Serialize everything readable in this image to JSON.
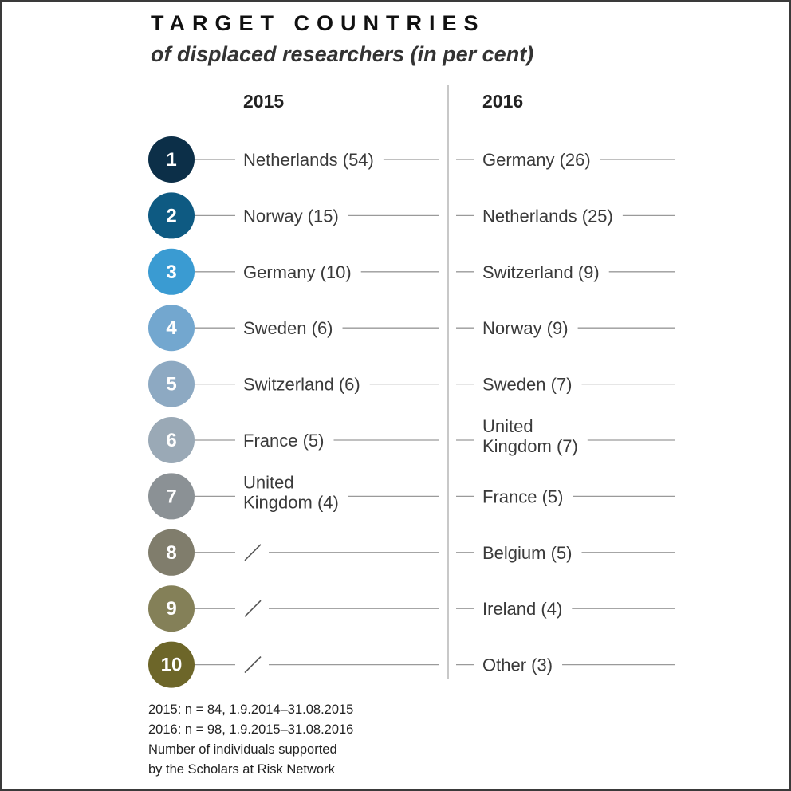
{
  "chart_data": {
    "type": "table",
    "title": "TARGET COUNTRIES",
    "subtitle": "of displaced researchers (in per cent)",
    "columns": [
      "2015",
      "2016"
    ],
    "ranks": [
      "1",
      "2",
      "3",
      "4",
      "5",
      "6",
      "7",
      "8",
      "9",
      "10"
    ],
    "rank_colors": [
      "#0c2f48",
      "#0e5a82",
      "#3a9bd2",
      "#73a7cf",
      "#8da9c2",
      "#9aa9b6",
      "#8b9195",
      "#807d6c",
      "#848058",
      "#6d6629"
    ],
    "series": [
      {
        "name": "2015",
        "entries": [
          {
            "country": "Netherlands",
            "value": 54
          },
          {
            "country": "Norway",
            "value": 15
          },
          {
            "country": "Germany",
            "value": 10
          },
          {
            "country": "Sweden",
            "value": 6
          },
          {
            "country": "Switzerland",
            "value": 6
          },
          {
            "country": "France",
            "value": 5
          },
          {
            "country": "United Kingdom",
            "value": 4
          },
          {
            "country": "/",
            "value": null
          },
          {
            "country": "/",
            "value": null
          },
          {
            "country": "/",
            "value": null
          }
        ]
      },
      {
        "name": "2016",
        "entries": [
          {
            "country": "Germany",
            "value": 26
          },
          {
            "country": "Netherlands",
            "value": 25
          },
          {
            "country": "Switzerland",
            "value": 9
          },
          {
            "country": "Norway",
            "value": 9
          },
          {
            "country": "Sweden",
            "value": 7
          },
          {
            "country": "United Kingdom",
            "value": 7
          },
          {
            "country": "France",
            "value": 5
          },
          {
            "country": "Belgium",
            "value": 5
          },
          {
            "country": "Ireland",
            "value": 4
          },
          {
            "country": "Other",
            "value": 3
          }
        ]
      }
    ],
    "footnotes": [
      "2015: n = 84, 1.9.2014–31.08.2015",
      "2016: n = 98, 1.9.2015–31.08.2016",
      "Number of individuals supported",
      "by the Scholars at Risk Network"
    ]
  }
}
